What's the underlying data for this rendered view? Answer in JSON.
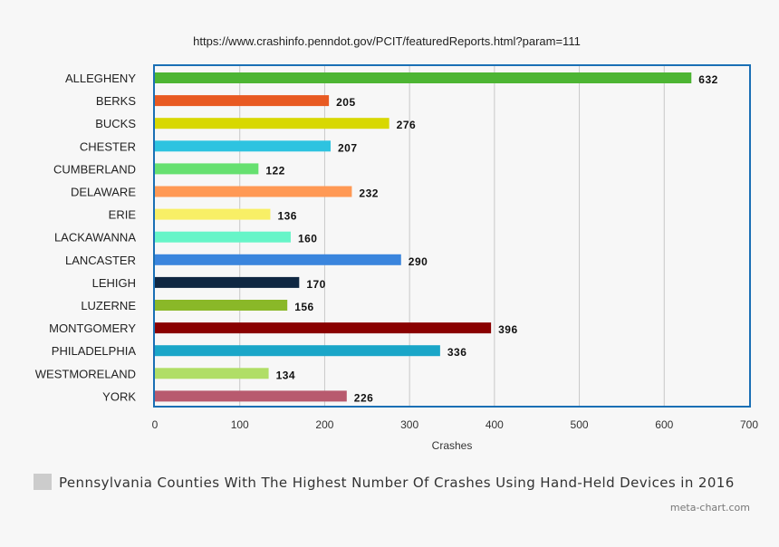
{
  "source_url": "https://www.crashinfo.penndot.gov/PCIT/featuredReports.html?param=111",
  "legend_label": "Pennsylvania Counties With The Highest Number Of Crashes Using Hand-Held Devices in 2016",
  "legend_swatch_color": "#cccccc",
  "brand": "meta-chart.com",
  "chart_data": {
    "type": "bar",
    "orientation": "horizontal",
    "title": "",
    "xlabel": "Crashes",
    "ylabel": "",
    "xlim": [
      0,
      700
    ],
    "ticks": [
      0,
      100,
      200,
      300,
      400,
      500,
      600,
      700
    ],
    "grid": true,
    "legend_position": "bottom",
    "series": [
      {
        "name": "Pennsylvania Counties With The Highest Number Of Crashes Using Hand-Held Devices in 2016"
      }
    ],
    "categories": [
      "ALLEGHENY",
      "BERKS",
      "BUCKS",
      "CHESTER",
      "CUMBERLAND",
      "DELAWARE",
      "ERIE",
      "LACKAWANNA",
      "LANCASTER",
      "LEHIGH",
      "LUZERNE",
      "MONTGOMERY",
      "PHILADELPHIA",
      "WESTMORELAND",
      "YORK"
    ],
    "values": [
      632,
      205,
      276,
      207,
      122,
      232,
      136,
      160,
      290,
      170,
      156,
      396,
      336,
      134,
      226
    ],
    "colors": [
      "#4db533",
      "#e85a22",
      "#d8d800",
      "#2ec3e0",
      "#66e070",
      "#ff9955",
      "#f8ef66",
      "#66f5c8",
      "#3a85dd",
      "#0f2742",
      "#8ab828",
      "#8a0000",
      "#1aa6c8",
      "#b0de66",
      "#b85a6e"
    ],
    "plot_border_color": "#1a6fb5"
  }
}
